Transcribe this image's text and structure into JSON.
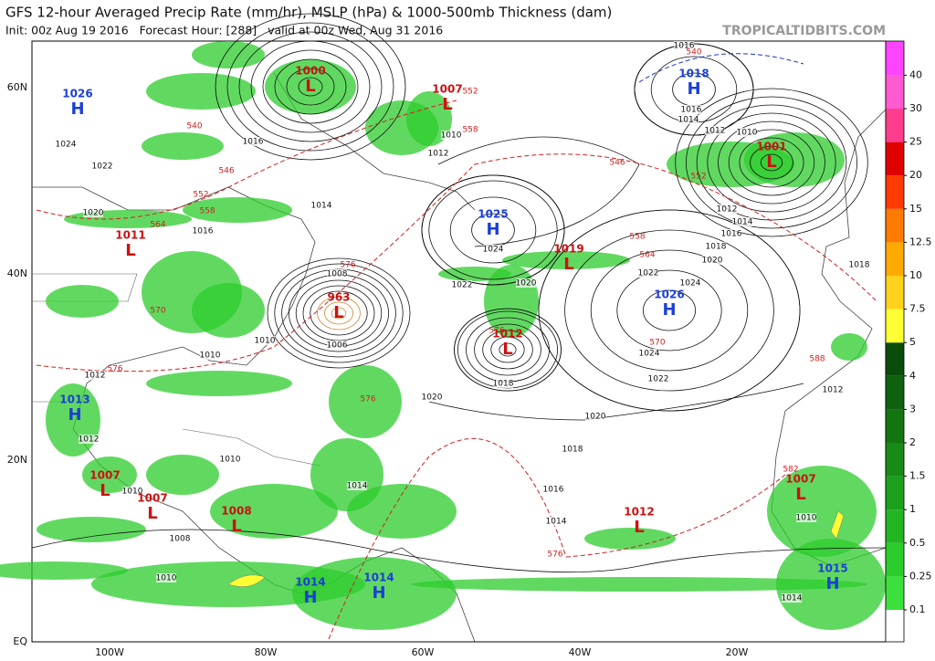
{
  "header": {
    "title": "GFS 12-hour Averaged Precip Rate (mm/hr), MSLP (hPa) & 1000-500mb Thickness (dam)",
    "subtitle": "Init: 00z Aug 19 2016   Forecast Hour: [288]   valid at 00z Wed, Aug 31 2016",
    "source": "TROPICALTIDBITS.COM"
  },
  "map": {
    "lat_labels": [
      "60N",
      "40N",
      "20N",
      "EQ"
    ],
    "lon_labels": [
      "100W",
      "80W",
      "60W",
      "40W",
      "20W"
    ],
    "centers": [
      {
        "type": "H",
        "value": 1026
      },
      {
        "type": "L",
        "value": 1000
      },
      {
        "type": "L",
        "value": 1007
      },
      {
        "type": "H",
        "value": 1018
      },
      {
        "type": "L",
        "value": 1001
      },
      {
        "type": "H",
        "value": 1025
      },
      {
        "type": "L",
        "value": 1011
      },
      {
        "type": "L",
        "value": 1019
      },
      {
        "type": "H",
        "value": 1026
      },
      {
        "type": "L",
        "value": 963
      },
      {
        "type": "L",
        "value": 1012
      },
      {
        "type": "H",
        "value": 1013
      },
      {
        "type": "L",
        "value": 1007
      },
      {
        "type": "L",
        "value": 1007
      },
      {
        "type": "L",
        "value": 1008
      },
      {
        "type": "L",
        "value": 1012
      },
      {
        "type": "L",
        "value": 1007
      },
      {
        "type": "H",
        "value": 1014
      },
      {
        "type": "H",
        "value": 1014
      },
      {
        "type": "H",
        "value": 1015
      }
    ],
    "isobar_labels": [
      1024,
      1022,
      1020,
      1016,
      1016,
      1014,
      1010,
      1012,
      1024,
      1022,
      1020,
      1016,
      1016,
      1014,
      1012,
      1010,
      1012,
      1014,
      1016,
      1018,
      1020,
      1022,
      1024,
      1024,
      1022,
      1020,
      1020,
      1018,
      1016,
      1014,
      1014,
      1010,
      1010,
      1010,
      1012,
      1012,
      1010,
      1008,
      1010,
      1018,
      1008,
      1006,
      1012,
      1010,
      1014,
      1018
    ],
    "thickness_labels": [
      540,
      546,
      552,
      558,
      564,
      570,
      576,
      576,
      576,
      552,
      558,
      546,
      552,
      558,
      564,
      570,
      576,
      582,
      588,
      576,
      540
    ]
  },
  "colorbar": {
    "labels": [
      "0.1",
      "0.25",
      "0.5",
      "1",
      "1.5",
      "2",
      "3",
      "4",
      "5",
      "7.5",
      "10",
      "12.5",
      "15",
      "20",
      "25",
      "30",
      "40"
    ],
    "colors": [
      "#ffffff",
      "#3ce03c",
      "#2ccc2c",
      "#22b522",
      "#1c9f1c",
      "#178a17",
      "#127512",
      "#0e610e",
      "#0a4c0a",
      "#ffff33",
      "#ffd21e",
      "#ffaa00",
      "#ff7a00",
      "#ff3a00",
      "#e00000",
      "#ff3d8e",
      "#ff5ad2",
      "#ff44ff"
    ]
  }
}
